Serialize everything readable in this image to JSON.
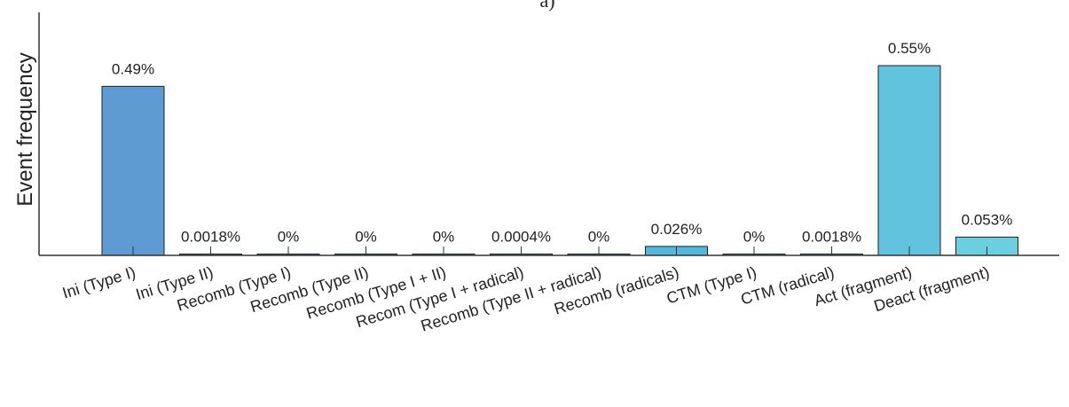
{
  "chart_data": {
    "type": "bar",
    "panel_label": "a)",
    "ylabel": "Event frequency",
    "xlabel": "",
    "ylim": [
      0,
      0.6
    ],
    "grid": false,
    "categories": [
      "Ini (Type I)",
      "Ini (Type II)",
      "Recomb (Type I)",
      "Recomb (Type II)",
      "Recomb (Type I + II)",
      "Recom (Type I + radical)",
      "Recomb (Type II + radical)",
      "Recomb (radicals)",
      "CTM (Type I)",
      "CTM (radical)",
      "Act (fragment)",
      "Deact (fragment)"
    ],
    "values": [
      0.49,
      0.0018,
      0,
      0,
      0,
      0.0004,
      0,
      0.026,
      0,
      0.0018,
      0.55,
      0.053
    ],
    "data_labels": [
      "0.49%",
      "0.0018%",
      "0%",
      "0%",
      "0%",
      "0.0004%",
      "0%",
      "0.026%",
      "0%",
      "0.0018%",
      "0.55%",
      "0.053%"
    ],
    "colors": [
      "#5f9bd3",
      "#5c9fd4",
      "#5aa3d5",
      "#58a7d6",
      "#56abd8",
      "#54afd9",
      "#53b3da",
      "#52b7db",
      "#56bbdd",
      "#5bbfde",
      "#62c3de",
      "#6ccfdf"
    ]
  }
}
